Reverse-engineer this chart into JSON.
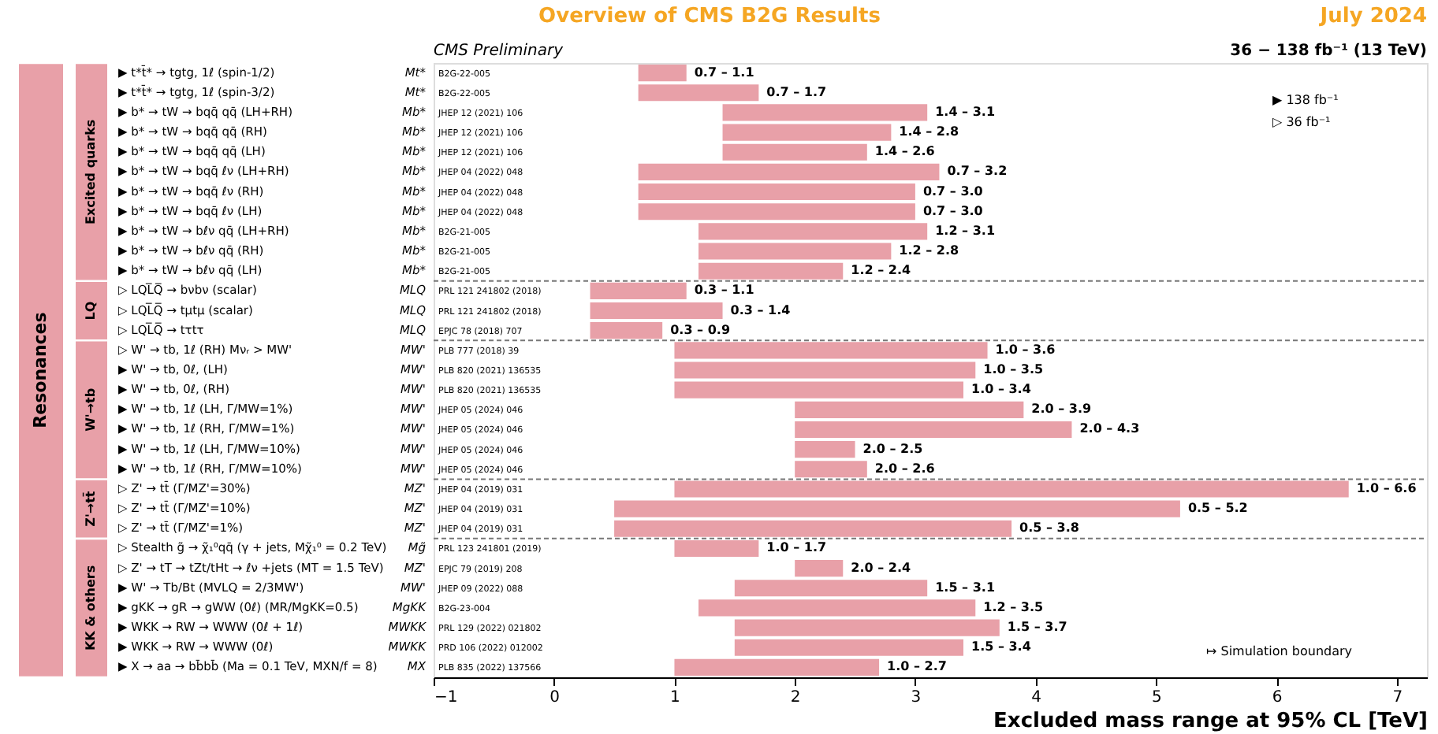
{
  "chart_data": {
    "type": "bar",
    "orientation": "horizontal",
    "title": "Overview of CMS B2G Results",
    "subtitle": "CMS Preliminary",
    "xlabel": "Excluded mass range at 95% CL [TeV]",
    "categories": [
      "▶ t*t̄* → tgtg, 1ℓ (spin-1/2)",
      "▶ t*t̄* → tgtg, 1ℓ (spin-3/2)",
      "▶ b* → tW → bqq̄ qq̄ (LH+RH)",
      "▶ b* → tW → bqq̄ qq̄ (RH)",
      "▶ b* → tW → bqq̄ qq̄ (LH)",
      "▶ b* → tW → bqq̄ ℓν (LH+RH)",
      "▶ b* → tW → bqq̄ ℓν (RH)",
      "▶ b* → tW → bqq̄ ℓν (LH)",
      "▶ b* → tW → bℓν qq̄ (LH+RH)",
      "▶ b* → tW → bℓν qq̄ (RH)",
      "▶ b* → tW → bℓν qq̄ (LH)",
      "▷ LQL̅Q̅ → bνbν  (scalar)",
      "▷ LQL̅Q̅ → tμtμ  (scalar)",
      "▷ LQL̅Q̅ → tτtτ",
      "▷ W' → tb, 1ℓ (RH) Mνᵣ > MW'",
      "▶ W' → tb, 0ℓ, (LH)",
      "▶ W' → tb, 0ℓ, (RH)",
      "▶ W' → tb, 1ℓ (LH, Γ/MW=1%)",
      "▶ W' → tb, 1ℓ (RH, Γ/MW=1%)",
      "▶ W' → tb, 1ℓ (LH, Γ/MW=10%)",
      "▶ W' → tb, 1ℓ (RH, Γ/MW=10%)",
      "▷ Z' → tt̄ (Γ/MZ'=30%)",
      "▷ Z' → tt̄ (Γ/MZ'=10%)",
      "▷ Z' → tt̄ (Γ/MZ'=1%)",
      "▷ Stealth g̃ → χ̃₁⁰qq̄ (γ + jets, Mχ̃₁⁰ = 0.2 TeV)",
      "▷ Z' → tT → tZt/tHt → ℓν +jets  (MT = 1.5 TeV)",
      "▶ W' → Tb/Bt (MVLQ = 2/3MW')",
      "▶ gKK → gR → gWW (0ℓ)  (MR/MgKK=0.5)",
      "▶ WKK → RW → WWW (0ℓ + 1ℓ)",
      "▶ WKK → RW → WWW (0ℓ)",
      "▶ X → aa → bb̄bb̄ (Ma = 0.1 TeV, MXN/f = 8)"
    ],
    "base": [
      0.7,
      0.7,
      1.4,
      1.4,
      1.4,
      0.7,
      0.7,
      0.7,
      1.2,
      1.2,
      1.2,
      0.3,
      0.3,
      0.3,
      1.0,
      1.0,
      1.0,
      2.0,
      2.0,
      2.0,
      2.0,
      1.0,
      0.5,
      0.5,
      1.0,
      2.0,
      1.5,
      1.2,
      1.5,
      1.5,
      1.0
    ],
    "values": [
      0.4,
      1.0,
      1.7,
      1.4,
      1.2,
      2.5,
      2.3,
      2.3,
      1.9,
      1.6,
      1.2,
      0.8,
      1.1,
      0.6,
      2.6,
      2.5,
      2.4,
      1.9,
      2.3,
      0.5,
      0.6,
      5.6,
      4.7,
      3.3,
      0.7,
      0.4,
      1.6,
      2.3,
      2.2,
      1.9,
      1.7
    ],
    "color": "#e8a0a8",
    "xlim": [
      -1,
      7.25
    ],
    "xticks": [
      -1,
      0,
      1,
      2,
      3,
      4,
      5,
      6,
      7
    ],
    "annotations": [
      "July 2024",
      "36 − 138 fb⁻¹ (13 TeV)",
      "▶ 138 fb⁻¹",
      "▷ 36 fb⁻¹",
      "↦ Simulation boundary",
      "Resonances",
      "Excited quarks",
      "LQ",
      "W'→tb",
      "Z'→tt̄",
      "KK & others",
      "Mt*",
      "Mt*",
      "Mb*",
      "Mb*",
      "Mb*",
      "Mb*",
      "Mb*",
      "Mb*",
      "Mb*",
      "Mb*",
      "Mb*",
      "MLQ",
      "MLQ",
      "MLQ",
      "MW'",
      "MW'",
      "MW'",
      "MW'",
      "MW'",
      "MW'",
      "MW'",
      "MZ'",
      "MZ'",
      "MZ'",
      "Mg̃",
      "MZ'",
      "MW'",
      "MgKK",
      "MWKK",
      "MWKK",
      "MX",
      "B2G-22-005",
      "B2G-22-005",
      "JHEP 12 (2021) 106",
      "JHEP 12 (2021) 106",
      "JHEP 12 (2021) 106",
      "JHEP 04 (2022) 048",
      "JHEP 04 (2022) 048",
      "JHEP 04 (2022) 048",
      "B2G-21-005",
      "B2G-21-005",
      "B2G-21-005",
      "PRL 121 241802 (2018)",
      "PRL 121 241802 (2018)",
      "EPJC 78 (2018) 707",
      "PLB 777 (2018) 39",
      "PLB 820 (2021) 136535",
      "PLB 820 (2021) 136535",
      "JHEP 05 (2024) 046",
      "JHEP 05 (2024) 046",
      "JHEP 05 (2024) 046",
      "JHEP 05 (2024) 046",
      "JHEP 04 (2019) 031",
      "JHEP 04 (2019) 031",
      "JHEP 04 (2019) 031",
      "PRL 123 241801 (2019)",
      "EPJC 79 (2019) 208",
      "JHEP 09 (2022) 088",
      "B2G-23-004",
      "PRL 129 (2022) 021802",
      "PRD 106 (2022) 012002",
      "PLB 835 (2022) 137566",
      {
        "text": "0.7 – 1.1",
        "x": 1.1,
        "y": "▶ t*t̄* → tgtg, 1ℓ (spin-1/2)"
      },
      {
        "text": "0.7 – 1.7",
        "x": 1.7,
        "y": "▶ t*t̄* → tgtg, 1ℓ (spin-3/2)"
      },
      {
        "text": "1.4 – 3.1",
        "x": 3.1,
        "y": "▶ b* → tW → bqq̄ qq̄ (LH+RH)"
      },
      {
        "text": "1.4 – 2.8",
        "x": 2.8,
        "y": "▶ b* → tW → bqq̄ qq̄ (RH)"
      },
      {
        "text": "1.4 – 2.6",
        "x": 2.6,
        "y": "▶ b* → tW → bqq̄ qq̄ (LH)"
      },
      {
        "text": "0.7 – 3.2",
        "x": 3.2,
        "y": "▶ b* → tW → bqq̄ ℓν (LH+RH)"
      },
      {
        "text": "0.7 – 3.0",
        "x": 3.0,
        "y": "▶ b* → tW → bqq̄ ℓν (RH)"
      },
      {
        "text": "0.7 – 3.0",
        "x": 3.0,
        "y": "▶ b* → tW → bqq̄ ℓν (LH)"
      },
      {
        "text": "1.2 – 3.1",
        "x": 3.1,
        "y": "▶ b* → tW → bℓν qq̄ (LH+RH)"
      },
      {
        "text": "1.2 – 2.8",
        "x": 2.8,
        "y": "▶ b* → tW → bℓν qq̄ (RH)"
      },
      {
        "text": "1.2 – 2.4",
        "x": 2.4,
        "y": "▶ b* → tW → bℓν qq̄ (LH)"
      },
      {
        "text": "0.3 – 1.1",
        "x": 1.1,
        "y": "▷ LQL̅Q̅ → bνbν  (scalar)"
      },
      {
        "text": "0.3 – 1.4",
        "x": 1.4,
        "y": "▷ LQL̅Q̅ → tμtμ  (scalar)"
      },
      {
        "text": "0.3 – 0.9",
        "x": 0.9,
        "y": "▷ LQL̅Q̅ → tτtτ"
      },
      {
        "text": "1.0 – 3.6",
        "x": 3.6,
        "y": "▷ W' → tb, 1ℓ (RH) Mνᵣ > MW'"
      },
      {
        "text": "1.0 – 3.5",
        "x": 3.5,
        "y": "▶ W' → tb, 0ℓ, (LH)"
      },
      {
        "text": "1.0 – 3.4",
        "x": 3.4,
        "y": "▶ W' → tb, 0ℓ, (RH)"
      },
      {
        "text": "2.0 – 3.9",
        "x": 3.9,
        "y": "▶ W' → tb, 1ℓ (LH, Γ/MW=1%)"
      },
      {
        "text": "2.0 – 4.3",
        "x": 4.3,
        "y": "▶ W' → tb, 1ℓ (RH, Γ/MW=1%)"
      },
      {
        "text": "2.0 – 2.5",
        "x": 2.5,
        "y": "▶ W' → tb, 1ℓ (LH, Γ/MW=10%)"
      },
      {
        "text": "2.0 – 2.6",
        "x": 2.6,
        "y": "▶ W' → tb, 1ℓ (RH, Γ/MW=10%)"
      },
      {
        "text": "1.0 – 6.6",
        "x": 6.6,
        "y": "▷ Z' → tt̄ (Γ/MZ'=30%)"
      },
      {
        "text": "0.5 – 5.2",
        "x": 5.2,
        "y": "▷ Z' → tt̄ (Γ/MZ'=10%)"
      },
      {
        "text": "0.5 – 3.8",
        "x": 3.8,
        "y": "▷ Z' → tt̄ (Γ/MZ'=1%)"
      },
      {
        "text": "1.0 – 1.7",
        "x": 1.7,
        "y": "▷ Stealth g̃ → χ̃₁⁰qq̄ (γ + jets, Mχ̃₁⁰ = 0.2 TeV)"
      },
      {
        "text": "2.0 – 2.4",
        "x": 2.4,
        "y": "▷ Z' → tT → tZt/tHt → ℓν +jets  (MT = 1.5 TeV)"
      },
      {
        "text": "1.5 – 3.1",
        "x": 3.1,
        "y": "▶ W' → Tb/Bt (MVLQ = 2/3MW')"
      },
      {
        "text": "1.2 – 3.5",
        "x": 3.5,
        "y": "▶ gKK → gR → gWW (0ℓ)  (MR/MgKK=0.5)"
      },
      {
        "text": "1.5 – 3.7",
        "x": 3.7,
        "y": "▶ WKK → RW → WWW (0ℓ + 1ℓ)"
      },
      {
        "text": "1.5 – 3.4",
        "x": 3.4,
        "y": "▶ WKK → RW → WWW (0ℓ)"
      },
      {
        "text": "1.0 – 2.7",
        "x": 2.7,
        "y": "▶ X → aa → bb̄bb̄ (Ma = 0.1 TeV, MXN/f = 8)"
      }
    ]
  }
}
